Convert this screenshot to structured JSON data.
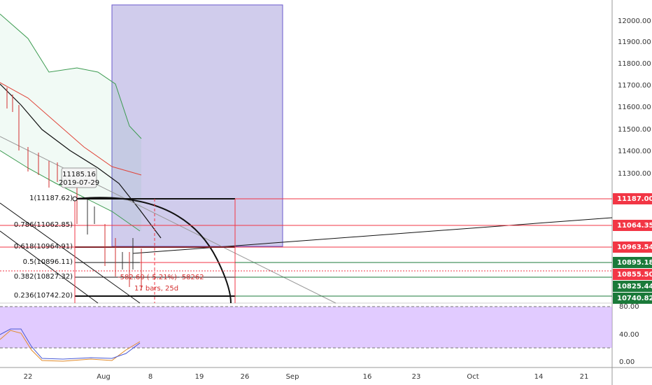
{
  "price_axis": {
    "ticks": [
      "12000.00",
      "11900.00",
      "11800.00",
      "11700.00",
      "11600.00",
      "11500.00",
      "11400.00",
      "11300.00"
    ],
    "levels": [
      {
        "label": "11187.00",
        "color": "#f23645"
      },
      {
        "label": "11064.35",
        "color": "#f23645"
      },
      {
        "label": "10963.54",
        "color": "#f23645"
      },
      {
        "label": "10895.18",
        "color": "#1b7a3a"
      },
      {
        "label": "10855.50",
        "color": "#f23645"
      },
      {
        "label": "10825.44",
        "color": "#1b7a3a"
      },
      {
        "label": "10740.82",
        "color": "#1b7a3a"
      }
    ]
  },
  "oscillator_axis": {
    "ticks": [
      "80.00",
      "40.00",
      "0.00"
    ]
  },
  "time_axis": {
    "ticks": [
      "22",
      "Aug",
      "8",
      "19",
      "26",
      "Sep",
      "16",
      "23",
      "Oct",
      "14",
      "21"
    ]
  },
  "fibonacci": {
    "levels": [
      "1(11187.62)",
      "0.786(11062.85)",
      "0.618(10964.91)",
      "0.5(10896.11)",
      "0.382(10827.32)",
      "0.236(10742.20)"
    ]
  },
  "tooltip": {
    "price": "11185.16",
    "date": "2019-07-29"
  },
  "measure": {
    "change": "-582.60 (-5.21%) -58262",
    "span": "17 bars, 25d"
  }
}
